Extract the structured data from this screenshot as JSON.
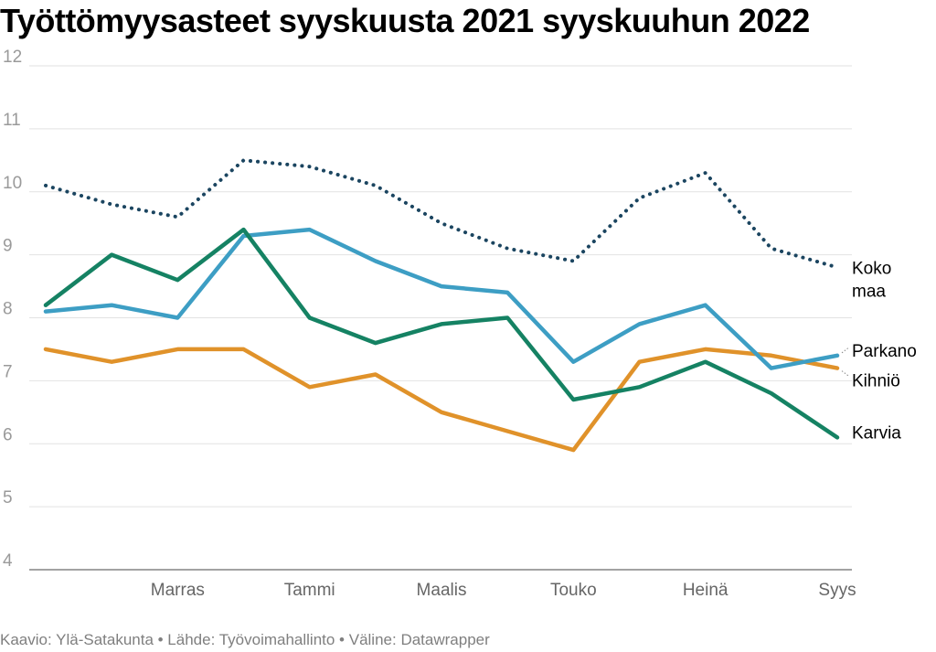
{
  "chart_data": {
    "type": "line",
    "title": "Työttömyysasteet syyskuusta 2021 syyskuuhun 2022",
    "xlabel": "",
    "ylabel": "",
    "ylim": [
      4,
      12
    ],
    "yticks": [
      "4",
      "5",
      "6",
      "7",
      "8",
      "9",
      "10",
      "11",
      "12"
    ],
    "x_count": 13,
    "x_tick_labels": [
      {
        "index": 2,
        "label": "Marras"
      },
      {
        "index": 4,
        "label": "Tammi"
      },
      {
        "index": 6,
        "label": "Maalis"
      },
      {
        "index": 8,
        "label": "Touko"
      },
      {
        "index": 10,
        "label": "Heinä"
      },
      {
        "index": 12,
        "label": "Syys"
      }
    ],
    "grid": true,
    "series": [
      {
        "key": "koko-maa",
        "name": "Koko maa",
        "label_lines": [
          "Koko",
          "maa"
        ],
        "color": "#1b4560",
        "style": "dotted",
        "values": [
          10.1,
          9.8,
          9.6,
          10.5,
          10.4,
          10.1,
          9.5,
          9.1,
          8.9,
          9.9,
          10.3,
          9.1,
          8.8
        ]
      },
      {
        "key": "parkano",
        "name": "Parkano",
        "label_lines": [
          "Parkano"
        ],
        "color": "#3d9ec4",
        "style": "solid",
        "values": [
          8.1,
          8.2,
          8.0,
          9.3,
          9.4,
          8.9,
          8.5,
          8.4,
          7.3,
          7.9,
          8.2,
          7.2,
          7.4
        ]
      },
      {
        "key": "kihnio",
        "name": "Kihniö",
        "label_lines": [
          "Kihniö"
        ],
        "color": "#e0922a",
        "style": "solid",
        "values": [
          7.5,
          7.3,
          7.5,
          7.5,
          6.9,
          7.1,
          6.5,
          6.2,
          5.9,
          7.3,
          7.5,
          7.4,
          7.2
        ]
      },
      {
        "key": "karvia",
        "name": "Karvia",
        "label_lines": [
          "Karvia"
        ],
        "color": "#158263",
        "style": "solid",
        "values": [
          8.2,
          9.0,
          8.6,
          9.4,
          8.0,
          7.6,
          7.9,
          8.0,
          6.7,
          6.9,
          7.3,
          6.8,
          6.1
        ]
      }
    ]
  },
  "footer": "Kaavio: Ylä-Satakunta • Lähde: Työvoimahallinto • Väline: Datawrapper"
}
